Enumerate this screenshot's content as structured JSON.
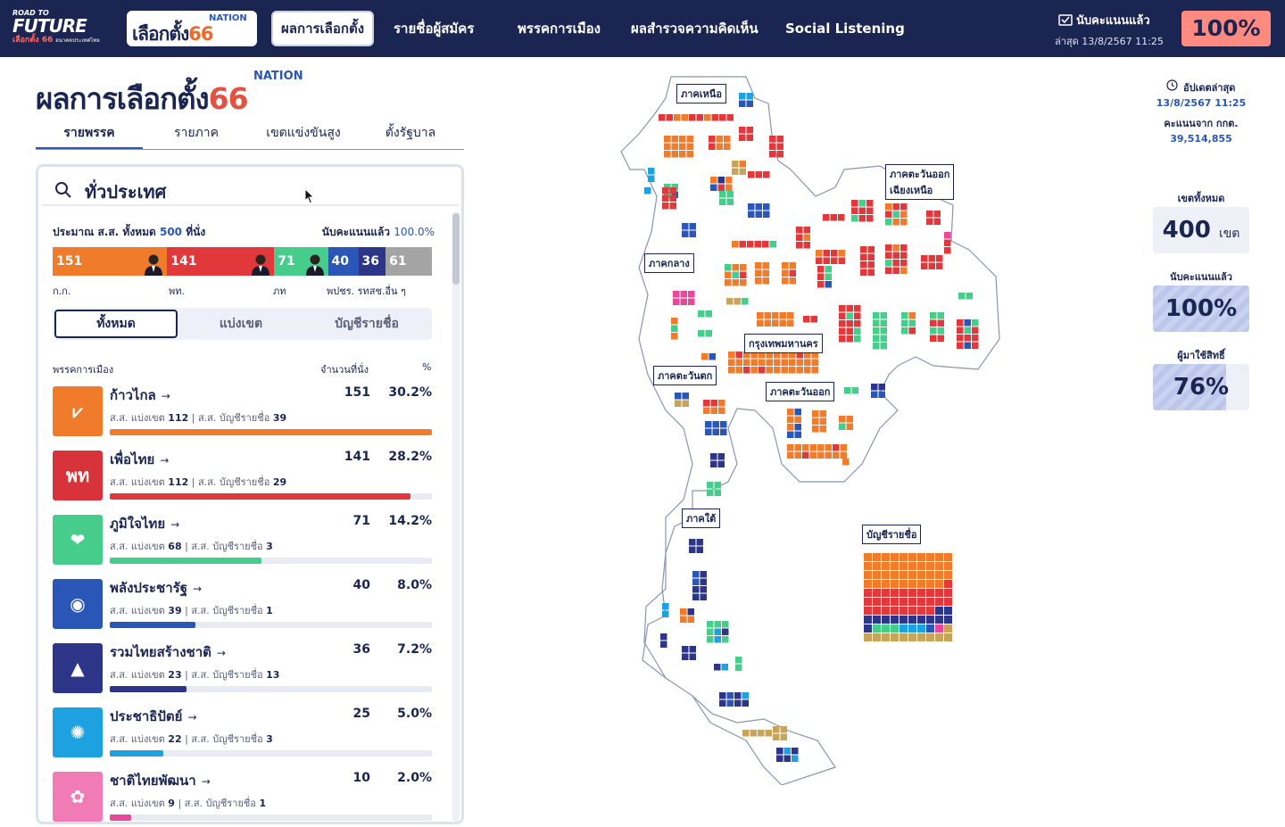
{
  "header": {
    "logo_future": {
      "line1": "ROAD TO",
      "line2": "FUTURE",
      "line3": "เลือกตั้ง 66",
      "line3_small": "อนาคตประเทศไทย"
    },
    "logo_nation": {
      "brand": "NATION",
      "text": "เลือกตั้ง",
      "num": "66"
    },
    "nav": [
      "ผลการเลือกตั้ง",
      "รายชื่อผู้สมัคร",
      "พรรคการเมือง",
      "ผลสำรวจความคิดเห็น",
      "Social Listening"
    ],
    "count_title": "นับคะแนนแล้ว",
    "count_updated": "ล่าสุด 13/8/2567 11:25",
    "count_pct": "100%"
  },
  "title": {
    "main": "ผลการเลือกตั้ง",
    "num": "66",
    "brand": "NATION"
  },
  "tabs": [
    "รายพรรค",
    "รายภาค",
    "เขตแข่งขันสูง",
    "ตั้งรัฐบาล"
  ],
  "panel": {
    "search_value": "ทั่วประเทศ",
    "estimate_label": "ประมาณ ส.ส. ทั้งหมด",
    "estimate_num": "500",
    "estimate_unit": "ที่นั่ง",
    "counted_label": "นับคะแนนแล้ว",
    "counted_pct": "100.0%",
    "seat_bar": [
      {
        "label": "151",
        "value": 151,
        "color": "#ef7b2b"
      },
      {
        "label": "141",
        "value": 141,
        "color": "#e0383b"
      },
      {
        "label": "71",
        "value": 71,
        "color": "#46cd8c"
      },
      {
        "label": "40",
        "value": 40,
        "color": "#2a56b8"
      },
      {
        "label": "36",
        "value": 36,
        "color": "#2c3588"
      },
      {
        "label": "61",
        "value": 61,
        "color": "#a4a4a4"
      }
    ],
    "seat_labels": [
      "ก.ก.",
      "พท.",
      "ภท",
      "พปชร. รทสช.อื่น ๆ"
    ],
    "filters": [
      "ทั้งหมด",
      "แบ่งเขต",
      "บัญชีรายชื่อ"
    ],
    "col_party": "พรรคการเมือง",
    "col_seats": "จำนวนที่นั่ง",
    "col_pct": "%",
    "parties": [
      {
        "name": "ก้าวไกล",
        "seats": "151",
        "pct": "30.2%",
        "fill": 1.0,
        "color": "#ef7b2b",
        "logo_bg": "#ef7b2b",
        "logo_text": "⩗",
        "d_label": "ส.ส. แบ่งเขต",
        "d_num": "112",
        "l_label": "ส.ส. บัญชีรายชื่อ",
        "l_num": "39"
      },
      {
        "name": "เพื่อไทย",
        "seats": "141",
        "pct": "28.2%",
        "fill": 0.934,
        "color": "#e0383b",
        "logo_bg": "#d8323a",
        "logo_text": "พท",
        "d_label": "ส.ส. แบ่งเขต",
        "d_num": "112",
        "l_label": "ส.ส. บัญชีรายชื่อ",
        "l_num": "29"
      },
      {
        "name": "ภูมิใจไทย",
        "seats": "71",
        "pct": "14.2%",
        "fill": 0.47,
        "color": "#46cd8c",
        "logo_bg": "#46cd8c",
        "logo_text": "❤",
        "d_label": "ส.ส. แบ่งเขต",
        "d_num": "68",
        "l_label": "ส.ส. บัญชีรายชื่อ",
        "l_num": "3"
      },
      {
        "name": "พลังประชารัฐ",
        "seats": "40",
        "pct": "8.0%",
        "fill": 0.265,
        "color": "#2a56b8",
        "logo_bg": "#2a56b8",
        "logo_text": "◉",
        "d_label": "ส.ส. แบ่งเขต",
        "d_num": "39",
        "l_label": "ส.ส. บัญชีรายชื่อ",
        "l_num": "1"
      },
      {
        "name": "รวมไทยสร้างชาติ",
        "seats": "36",
        "pct": "7.2%",
        "fill": 0.238,
        "color": "#2c3588",
        "logo_bg": "#2c3588",
        "logo_text": "▲",
        "d_label": "ส.ส. แบ่งเขต",
        "d_num": "23",
        "l_label": "ส.ส. บัญชีรายชื่อ",
        "l_num": "13"
      },
      {
        "name": "ประชาธิปัตย์",
        "seats": "25",
        "pct": "5.0%",
        "fill": 0.166,
        "color": "#1ea1e0",
        "logo_bg": "#1ea1e0",
        "logo_text": "✺",
        "d_label": "ส.ส. แบ่งเขต",
        "d_num": "22",
        "l_label": "ส.ส. บัญชีรายชื่อ",
        "l_num": "3"
      },
      {
        "name": "ชาติไทยพัฒนา",
        "seats": "10",
        "pct": "2.0%",
        "fill": 0.066,
        "color": "#e9479a",
        "logo_bg": "#f07bb5",
        "logo_text": "✿",
        "d_label": "ส.ส. แบ่งเขต",
        "d_num": "9",
        "l_label": "ส.ส. บัญชีรายชื่อ",
        "l_num": "1"
      }
    ]
  },
  "map": {
    "regions": [
      "ภาคเหนือ",
      "ภาคตะวันออก\nเฉียงเหนือ",
      "ภาคกลาง",
      "กรุงเทพมหานคร",
      "ภาคตะวันตก",
      "ภาคตะวันออก",
      "ภาคใต้",
      "บัญชีรายชื่อ"
    ],
    "party_colors": [
      "#ef7b2b",
      "#e0383b",
      "#46cd8c",
      "#2a56b8",
      "#2c3588",
      "#1ea1e0",
      "#e9479a",
      "#c8a45a"
    ]
  },
  "stats": {
    "update_label": "อัปเดตล่าสุด",
    "update_time": "13/8/2567 11:25",
    "votes_label": "คะแนนจาก กกต.",
    "votes_value": "39,514,855",
    "districts_label": "เขตทั้งหมด",
    "districts_value": "400",
    "districts_unit": "เขต",
    "counted_label": "นับคะแนนแล้ว",
    "counted_value": "100%",
    "counted_fill": 1.0,
    "turnout_label": "ผู้มาใช้สิทธิ์",
    "turnout_value": "76%",
    "turnout_fill": 0.76
  }
}
